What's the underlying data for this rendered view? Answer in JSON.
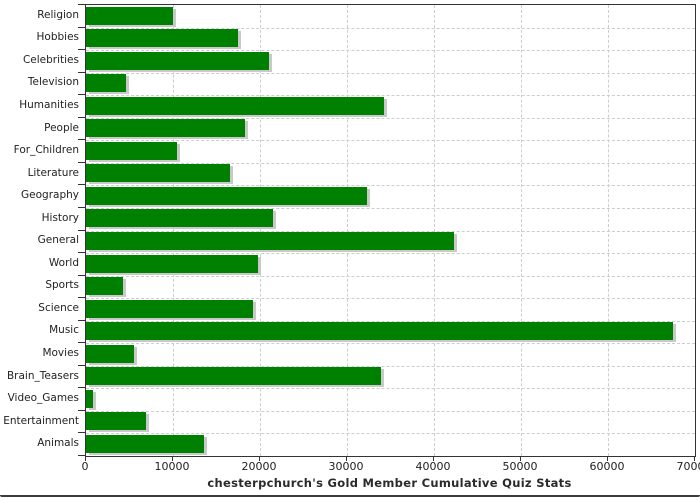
{
  "chart_data": {
    "type": "bar",
    "orientation": "horizontal",
    "title": "chesterpchurch's Gold Member Cumulative Quiz Stats",
    "categories": [
      "Religion",
      "Hobbies",
      "Celebrities",
      "Television",
      "Humanities",
      "People",
      "For_Children",
      "Literature",
      "Geography",
      "History",
      "General",
      "World",
      "Sports",
      "Science",
      "Music",
      "Movies",
      "Brain_Teasers",
      "Video_Games",
      "Entertainment",
      "Animals"
    ],
    "values": [
      10000,
      17500,
      21000,
      4600,
      34200,
      18300,
      10500,
      16500,
      32300,
      21500,
      42300,
      19800,
      4300,
      19200,
      67500,
      5500,
      33900,
      800,
      6900,
      13600
    ],
    "xlim": [
      0,
      70000
    ],
    "x_ticks": [
      0,
      10000,
      20000,
      30000,
      40000,
      50000,
      60000,
      70000
    ],
    "grid": true,
    "legend": "none",
    "bar_color": "#008000",
    "bar_shadow_color": "#c9c9c9",
    "gridline_color": "#cdcdcd",
    "axis_color": "#333333",
    "text_color": "#1f1f1f"
  }
}
